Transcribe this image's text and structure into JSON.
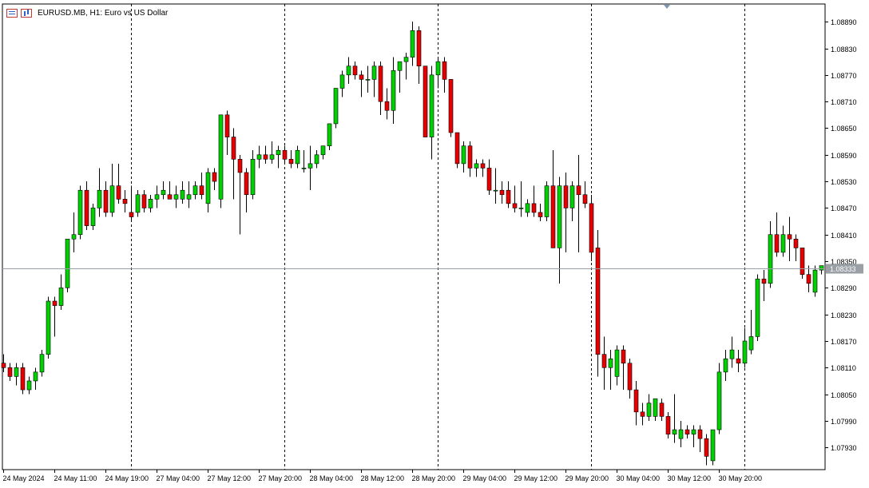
{
  "header": {
    "title": "EURUSD.MB, H1:  Euro vs US Dollar"
  },
  "icons": {
    "left": "order-list-icon",
    "right": "chart-bars-icon"
  },
  "colors": {
    "bull": "#00d100",
    "bear": "#e60000",
    "wick": "#000000",
    "grid_divider": "#000000",
    "current_line": "#9aa0a6",
    "price_tag_bg": "#9aa0a6"
  },
  "current_price": "1.08333",
  "chart_data": {
    "type": "candlestick",
    "symbol": "EURUSD.MB",
    "timeframe": "H1",
    "title": "EURUSD.MB, H1:  Euro vs US Dollar",
    "ylim": [
      1.0788,
      1.0893
    ],
    "y_ticks": [
      "1.08890",
      "1.08830",
      "1.08770",
      "1.08710",
      "1.08650",
      "1.08590",
      "1.08530",
      "1.08470",
      "1.08410",
      "1.08350",
      "1.08290",
      "1.08230",
      "1.08170",
      "1.08110",
      "1.08050",
      "1.07990",
      "1.07930"
    ],
    "x_ticks": [
      {
        "i": 0,
        "label": "24 May 2024"
      },
      {
        "i": 8,
        "label": "24 May 11:00"
      },
      {
        "i": 16,
        "label": "24 May 19:00"
      },
      {
        "i": 24,
        "label": "27 May 04:00"
      },
      {
        "i": 32,
        "label": "27 May 12:00"
      },
      {
        "i": 40,
        "label": "27 May 20:00"
      },
      {
        "i": 48,
        "label": "28 May 04:00"
      },
      {
        "i": 56,
        "label": "28 May 12:00"
      },
      {
        "i": 64,
        "label": "28 May 20:00"
      },
      {
        "i": 72,
        "label": "29 May 04:00"
      },
      {
        "i": 80,
        "label": "29 May 12:00"
      },
      {
        "i": 88,
        "label": "29 May 20:00"
      },
      {
        "i": 96,
        "label": "30 May 04:00"
      },
      {
        "i": 104,
        "label": "30 May 12:00"
      },
      {
        "i": 112,
        "label": "30 May 20:00"
      }
    ],
    "day_separators": [
      20,
      44,
      68,
      92,
      116
    ],
    "candles": [
      [
        1.0812,
        1.0814,
        1.081,
        1.0811
      ],
      [
        1.0811,
        1.0812,
        1.0808,
        1.0809
      ],
      [
        1.0809,
        1.0812,
        1.0807,
        1.0811
      ],
      [
        1.0811,
        1.0812,
        1.0805,
        1.0806
      ],
      [
        1.0806,
        1.0809,
        1.0805,
        1.0808
      ],
      [
        1.0808,
        1.0811,
        1.0806,
        1.081
      ],
      [
        1.081,
        1.0815,
        1.0809,
        1.0814
      ],
      [
        1.0814,
        1.0827,
        1.0813,
        1.0826
      ],
      [
        1.0826,
        1.0827,
        1.0818,
        1.0825
      ],
      [
        1.0825,
        1.0832,
        1.0824,
        1.0829
      ],
      [
        1.0829,
        1.084,
        1.0828,
        1.084
      ],
      [
        1.084,
        1.0846,
        1.0837,
        1.0841
      ],
      [
        1.0841,
        1.0852,
        1.084,
        1.0851
      ],
      [
        1.0851,
        1.0853,
        1.0842,
        1.0843
      ],
      [
        1.0843,
        1.0848,
        1.0842,
        1.0847
      ],
      [
        1.0847,
        1.0856,
        1.0845,
        1.0851
      ],
      [
        1.0851,
        1.0853,
        1.0845,
        1.0846
      ],
      [
        1.0846,
        1.0857,
        1.0845,
        1.0852
      ],
      [
        1.0852,
        1.0857,
        1.0848,
        1.0849
      ],
      [
        1.0849,
        1.0851,
        1.0846,
        1.0848
      ],
      [
        1.0846,
        1.0852,
        1.0844,
        1.0845
      ],
      [
        1.0846,
        1.0851,
        1.0845,
        1.085
      ],
      [
        1.085,
        1.0851,
        1.0846,
        1.0847
      ],
      [
        1.0847,
        1.085,
        1.0846,
        1.0849
      ],
      [
        1.0849,
        1.0852,
        1.0847,
        1.085
      ],
      [
        1.085,
        1.0853,
        1.0849,
        1.0851
      ],
      [
        1.085,
        1.0853,
        1.0849,
        1.0849
      ],
      [
        1.0849,
        1.0852,
        1.0847,
        1.085
      ],
      [
        1.0849,
        1.0853,
        1.0848,
        1.0851
      ],
      [
        1.0849,
        1.0853,
        1.0847,
        1.085
      ],
      [
        1.085,
        1.0853,
        1.0849,
        1.0852
      ],
      [
        1.0852,
        1.0855,
        1.0849,
        1.085
      ],
      [
        1.0848,
        1.0856,
        1.0846,
        1.0855
      ],
      [
        1.0855,
        1.0856,
        1.0851,
        1.0853
      ],
      [
        1.0849,
        1.0868,
        1.0847,
        1.0868
      ],
      [
        1.0868,
        1.0869,
        1.0859,
        1.0863
      ],
      [
        1.0863,
        1.0865,
        1.0849,
        1.0858
      ],
      [
        1.0858,
        1.0859,
        1.0841,
        1.0855
      ],
      [
        1.0855,
        1.0856,
        1.0846,
        1.085
      ],
      [
        1.085,
        1.086,
        1.0849,
        1.0858
      ],
      [
        1.0858,
        1.0861,
        1.0856,
        1.0859
      ],
      [
        1.0859,
        1.0861,
        1.0857,
        1.0858
      ],
      [
        1.0858,
        1.0862,
        1.0857,
        1.0859
      ],
      [
        1.0859,
        1.0861,
        1.0856,
        1.086
      ],
      [
        1.086,
        1.0861,
        1.0857,
        1.0858
      ],
      [
        1.0858,
        1.086,
        1.0856,
        1.0857
      ],
      [
        1.0857,
        1.0861,
        1.0856,
        1.086
      ],
      [
        1.0856,
        1.086,
        1.0855,
        1.0856
      ],
      [
        1.0856,
        1.0861,
        1.0851,
        1.0857
      ],
      [
        1.0857,
        1.086,
        1.0856,
        1.0859
      ],
      [
        1.0859,
        1.0861,
        1.0858,
        1.0861
      ],
      [
        1.0861,
        1.0866,
        1.086,
        1.0866
      ],
      [
        1.0866,
        1.0874,
        1.0865,
        1.0874
      ],
      [
        1.0874,
        1.0878,
        1.0872,
        1.0877
      ],
      [
        1.0877,
        1.0881,
        1.0875,
        1.0879
      ],
      [
        1.0879,
        1.088,
        1.0876,
        1.0877
      ],
      [
        1.0877,
        1.0878,
        1.0872,
        1.0876
      ],
      [
        1.0876,
        1.0879,
        1.0873,
        1.0876
      ],
      [
        1.0876,
        1.088,
        1.0872,
        1.0879
      ],
      [
        1.0879,
        1.088,
        1.0868,
        1.0871
      ],
      [
        1.0871,
        1.0874,
        1.0867,
        1.0869
      ],
      [
        1.0869,
        1.0881,
        1.0866,
        1.0878
      ],
      [
        1.0878,
        1.088,
        1.0873,
        1.088
      ],
      [
        1.088,
        1.0882,
        1.0876,
        1.0881
      ],
      [
        1.0881,
        1.0889,
        1.0879,
        1.0887
      ],
      [
        1.0887,
        1.0888,
        1.0875,
        1.0879
      ],
      [
        1.0879,
        1.0879,
        1.0863,
        1.0863
      ],
      [
        1.0863,
        1.0879,
        1.0858,
        1.0877
      ],
      [
        1.0877,
        1.0881,
        1.0874,
        1.088
      ],
      [
        1.088,
        1.0881,
        1.0873,
        1.0876
      ],
      [
        1.0876,
        1.0876,
        1.0863,
        1.0864
      ],
      [
        1.0864,
        1.0864,
        1.0856,
        1.0857
      ],
      [
        1.0857,
        1.0862,
        1.0855,
        1.0861
      ],
      [
        1.0861,
        1.0862,
        1.0854,
        1.0856
      ],
      [
        1.0856,
        1.0858,
        1.0854,
        1.0857
      ],
      [
        1.0857,
        1.0858,
        1.0854,
        1.0856
      ],
      [
        1.0856,
        1.0858,
        1.085,
        1.0851
      ],
      [
        1.0851,
        1.0856,
        1.0848,
        1.0851
      ],
      [
        1.0851,
        1.0853,
        1.0848,
        1.085
      ],
      [
        1.0851,
        1.0853,
        1.0847,
        1.0848
      ],
      [
        1.0848,
        1.0852,
        1.0846,
        1.0847
      ],
      [
        1.0847,
        1.0853,
        1.0845,
        1.0847
      ],
      [
        1.0846,
        1.0849,
        1.0845,
        1.0848
      ],
      [
        1.0848,
        1.0852,
        1.0845,
        1.0846
      ],
      [
        1.0846,
        1.0848,
        1.0844,
        1.0845
      ],
      [
        1.0845,
        1.0853,
        1.0844,
        1.0852
      ],
      [
        1.0852,
        1.086,
        1.0838,
        1.0838
      ],
      [
        1.0838,
        1.0854,
        1.083,
        1.0852
      ],
      [
        1.0852,
        1.0855,
        1.0837,
        1.0847
      ],
      [
        1.0847,
        1.0853,
        1.0844,
        1.0852
      ],
      [
        1.0852,
        1.0859,
        1.0837,
        1.085
      ],
      [
        1.085,
        1.0853,
        1.0847,
        1.0848
      ],
      [
        1.0848,
        1.085,
        1.0835,
        1.0837
      ],
      [
        1.0838,
        1.0842,
        1.0809,
        1.0814
      ],
      [
        1.0814,
        1.0818,
        1.0806,
        1.0811
      ],
      [
        1.0811,
        1.0815,
        1.0806,
        1.0813
      ],
      [
        1.0809,
        1.0816,
        1.0807,
        1.0815
      ],
      [
        1.0815,
        1.0816,
        1.0806,
        1.0812
      ],
      [
        1.0812,
        1.0813,
        1.0804,
        1.0806
      ],
      [
        1.0806,
        1.0808,
        1.0798,
        1.0801
      ],
      [
        1.0801,
        1.0803,
        1.0798,
        1.08
      ],
      [
        1.08,
        1.0805,
        1.0799,
        1.0803
      ],
      [
        1.08,
        1.0804,
        1.0799,
        1.0804
      ],
      [
        1.0803,
        1.0804,
        1.0799,
        1.08
      ],
      [
        1.08,
        1.0801,
        1.0795,
        1.0796
      ],
      [
        1.0796,
        1.0805,
        1.0794,
        1.0797
      ],
      [
        1.0795,
        1.0799,
        1.0793,
        1.0797
      ],
      [
        1.0797,
        1.0798,
        1.0795,
        1.0796
      ],
      [
        1.0796,
        1.0798,
        1.0793,
        1.0797
      ],
      [
        1.0797,
        1.0798,
        1.0792,
        1.0795
      ],
      [
        1.0795,
        1.0796,
        1.0789,
        1.0791
      ],
      [
        1.079,
        1.0796,
        1.0789,
        1.0797
      ],
      [
        1.0797,
        1.0812,
        1.0796,
        1.081
      ],
      [
        1.081,
        1.0815,
        1.0808,
        1.0813
      ],
      [
        1.0813,
        1.0818,
        1.0811,
        1.0815
      ],
      [
        1.0813,
        1.0815,
        1.081,
        1.0812
      ],
      [
        1.0812,
        1.082,
        1.0811,
        1.0817
      ],
      [
        1.0815,
        1.0824,
        1.0814,
        1.0818
      ],
      [
        1.0818,
        1.0832,
        1.0817,
        1.0831
      ],
      [
        1.0831,
        1.0833,
        1.0826,
        1.083
      ],
      [
        1.083,
        1.0844,
        1.0829,
        1.0841
      ],
      [
        1.0841,
        1.0846,
        1.0836,
        1.0837
      ],
      [
        1.0837,
        1.0843,
        1.0836,
        1.0841
      ],
      [
        1.0841,
        1.0845,
        1.0835,
        1.084
      ],
      [
        1.084,
        1.0841,
        1.0835,
        1.0838
      ],
      [
        1.0838,
        1.0838,
        1.0831,
        1.0832
      ],
      [
        1.0832,
        1.0834,
        1.0828,
        1.083
      ],
      [
        1.0828,
        1.0834,
        1.0827,
        1.0833
      ],
      [
        1.0833,
        1.0834,
        1.0832,
        1.0834
      ]
    ]
  }
}
